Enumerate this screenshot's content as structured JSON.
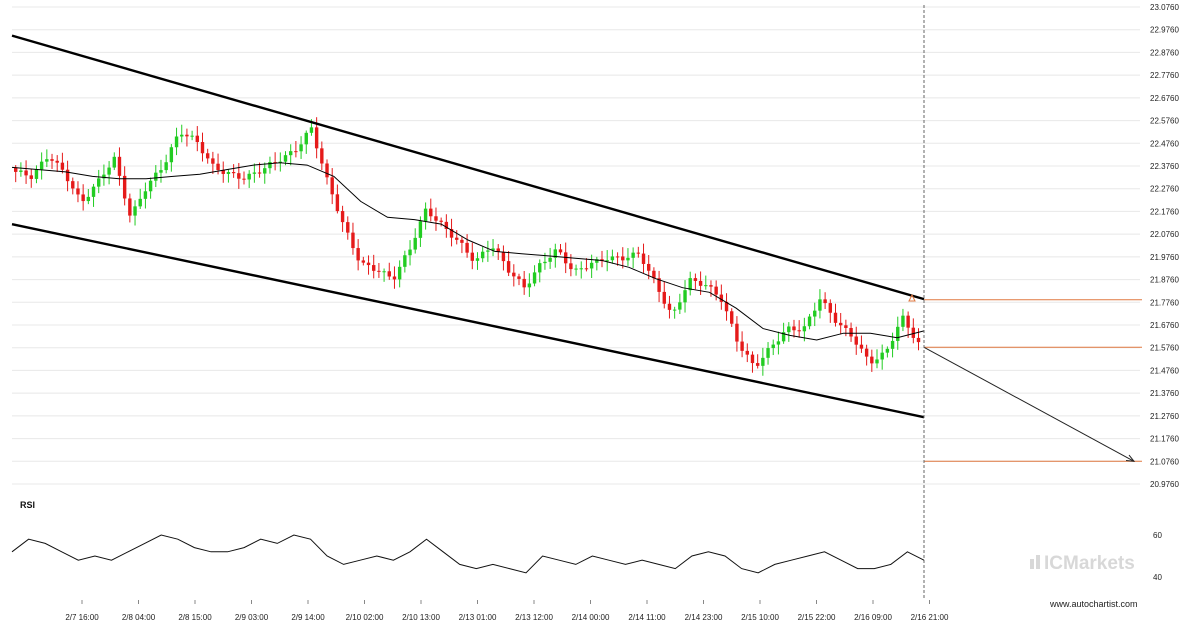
{
  "chart_data": {
    "type": "candlestick",
    "title": "",
    "x_ticks": [
      "2/7 16:00",
      "2/8 04:00",
      "2/8 15:00",
      "2/9 03:00",
      "2/9 14:00",
      "2/10 02:00",
      "2/10 13:00",
      "2/13 01:00",
      "2/13 12:00",
      "2/14 00:00",
      "2/14 11:00",
      "2/14 23:00",
      "2/15 10:00",
      "2/15 22:00",
      "2/16 09:00",
      "2/16 21:00"
    ],
    "y_ticks": [
      "23.0760",
      "22.9760",
      "22.8760",
      "22.7760",
      "22.6760",
      "22.5760",
      "22.4760",
      "22.3760",
      "22.2760",
      "22.1760",
      "22.0760",
      "21.9760",
      "21.8760",
      "21.7760",
      "21.6760",
      "21.5760",
      "21.4760",
      "21.3760",
      "21.2760",
      "21.1760",
      "21.0760",
      "20.9760"
    ],
    "ylim": [
      20.976,
      23.076
    ],
    "close_path": [
      22.35,
      22.32,
      22.42,
      22.35,
      22.22,
      22.3,
      22.4,
      22.15,
      22.3,
      22.38,
      22.52,
      22.48,
      22.38,
      22.35,
      22.32,
      22.35,
      22.4,
      22.45,
      22.55,
      22.3,
      22.1,
      21.95,
      21.93,
      21.88,
      22.0,
      22.18,
      22.12,
      22.05,
      21.95,
      22.02,
      21.92,
      21.85,
      21.95,
      22.0,
      21.9,
      21.95,
      21.98,
      21.97,
      21.98,
      21.85,
      21.72,
      21.88,
      21.85,
      21.78,
      21.6,
      21.5,
      21.58,
      21.65,
      21.65,
      21.8,
      21.7,
      21.62,
      21.5,
      21.55,
      21.72,
      21.6
    ],
    "moving_average": [
      22.37,
      22.36,
      22.35,
      22.33,
      22.32,
      22.32,
      22.33,
      22.34,
      22.36,
      22.38,
      22.39,
      22.38,
      22.33,
      22.22,
      22.15,
      22.14,
      22.12,
      22.05,
      22.0,
      21.99,
      21.98,
      21.97,
      21.96,
      21.93,
      21.88,
      21.84,
      21.82,
      21.75,
      21.66,
      21.63,
      21.61,
      21.64,
      21.64,
      21.62,
      21.65
    ],
    "channel": {
      "upper": {
        "start": {
          "x": "2/7 03:00",
          "y": 22.95
        },
        "end": {
          "x": "2/16 21:00",
          "y": 21.79
        }
      },
      "lower": {
        "start": {
          "x": "2/7 03:00",
          "y": 22.12
        },
        "end": {
          "x": "2/16 21:00",
          "y": 21.27
        }
      }
    },
    "levels": [
      21.787,
      21.578,
      21.076
    ],
    "projection": {
      "from": {
        "x": "2/16 21:00",
        "y": 21.578
      },
      "to": {
        "y": 21.076
      }
    },
    "rsi": {
      "label": "RSI",
      "y_ticks": [
        "60",
        "40"
      ],
      "values": [
        52,
        58,
        56,
        52,
        48,
        50,
        48,
        52,
        56,
        60,
        58,
        54,
        52,
        52,
        54,
        58,
        56,
        60,
        58,
        50,
        46,
        48,
        50,
        48,
        52,
        58,
        52,
        46,
        44,
        46,
        44,
        42,
        50,
        48,
        46,
        50,
        48,
        46,
        48,
        46,
        44,
        50,
        52,
        50,
        44,
        42,
        46,
        48,
        50,
        52,
        48,
        44,
        44,
        46,
        52,
        48
      ]
    },
    "colors": {
      "up": "#22cc22",
      "down": "#e51a1a",
      "line": "#000000",
      "level": "#e07840",
      "grid": "#e8e8e8"
    }
  },
  "brand": {
    "name": "ICMarkets"
  },
  "site": {
    "url": "www.autochartist.com"
  }
}
